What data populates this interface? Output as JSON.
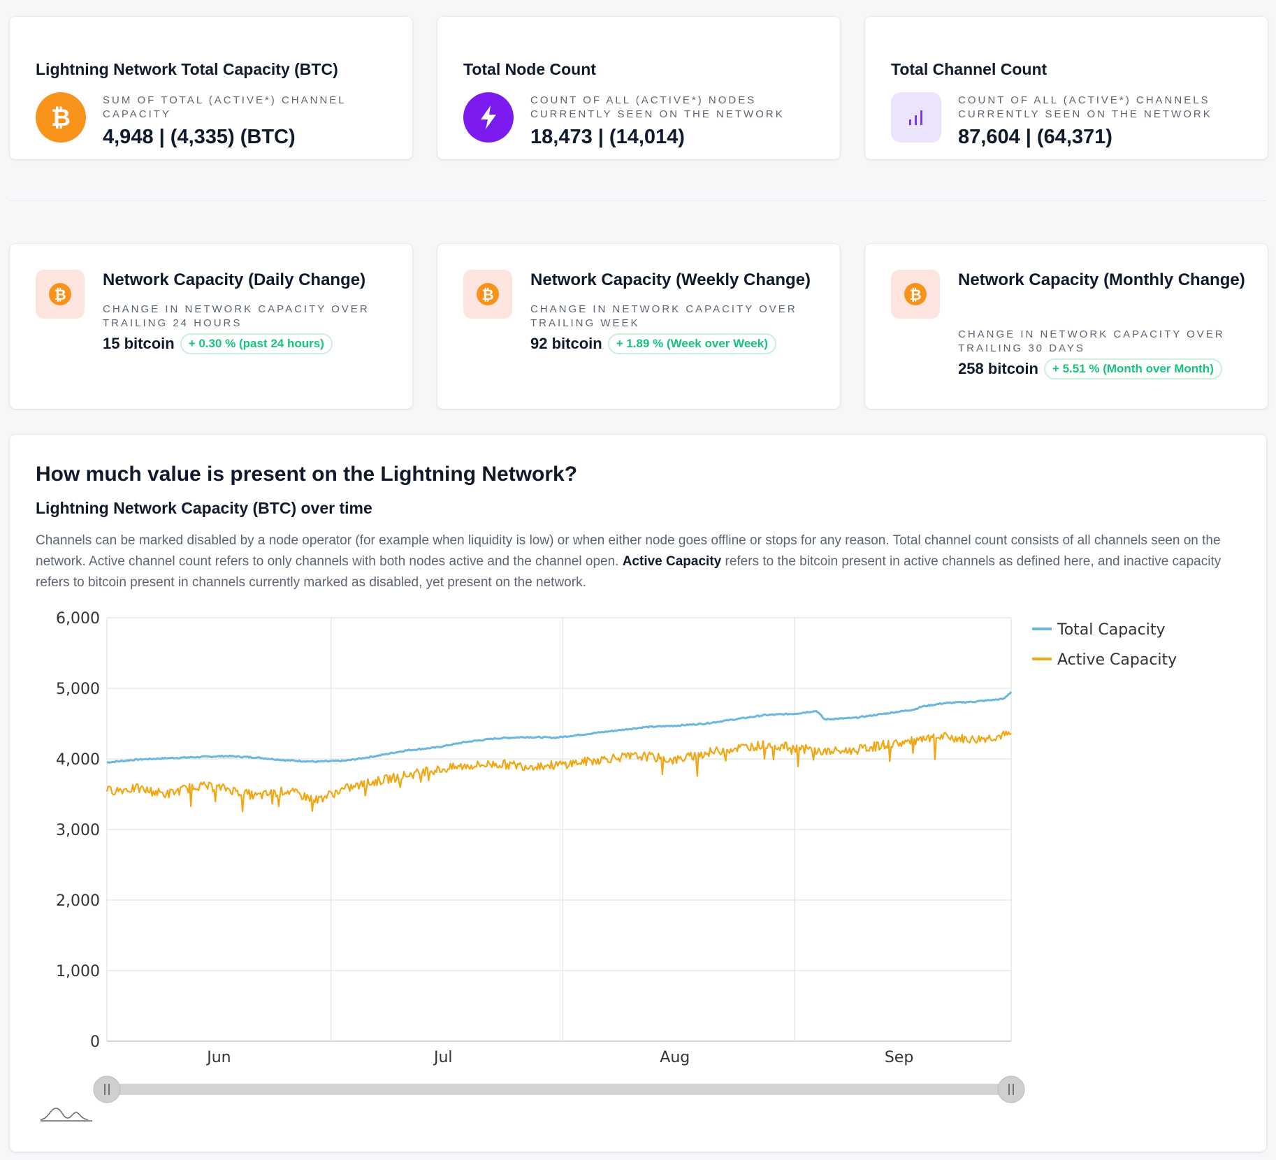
{
  "stats": [
    {
      "title": "Lightning Network Total Capacity (BTC)",
      "desc": "SUM OF TOTAL (ACTIVE*) CHANNEL CAPACITY",
      "value": "4,948 | (4,335) (BTC)",
      "icon": "bitcoin-icon",
      "icon_bg": "#f7931a"
    },
    {
      "title": "Total Node Count",
      "desc": "COUNT OF ALL (ACTIVE*) NODES CURRENTLY SEEN ON THE NETWORK",
      "value": "18,473 | (14,014)",
      "icon": "lightning-icon",
      "icon_bg": "#7c1bf0"
    },
    {
      "title": "Total Channel Count",
      "desc": "COUNT OF ALL (ACTIVE*) CHANNELS CURRENTLY SEEN ON THE NETWORK",
      "value": "87,604 | (64,371)",
      "icon": "bar-chart-icon",
      "icon_bg": "#ece3fd"
    }
  ],
  "changes": [
    {
      "title": "Network Capacity (Daily Change)",
      "desc": "CHANGE IN NETWORK CAPACITY OVER TRAILING 24 HOURS",
      "amount": "15 bitcoin",
      "badge": "+ 0.30 % (past 24 hours)"
    },
    {
      "title": "Network Capacity (Weekly Change)",
      "desc": "CHANGE IN NETWORK CAPACITY OVER TRAILING WEEK",
      "amount": "92 bitcoin",
      "badge": "+ 1.89 % (Week over Week)"
    },
    {
      "title": "Network Capacity (Monthly Change)",
      "desc": "CHANGE IN NETWORK CAPACITY OVER TRAILING 30 DAYS",
      "amount": "258 bitcoin",
      "badge": "+ 5.51 % (Month over Month)"
    }
  ],
  "section": {
    "heading": "How much value is present on the Lightning Network?",
    "subheading": "Lightning Network Capacity (BTC) over time",
    "para_part1": "Channels can be marked disabled by a node operator (for example when liquidity is low) or when either node goes offline or stops for any reason. Total channel count consists of all channels seen on the network. Active channel count refers to only channels with both nodes active and the channel open. ",
    "para_bold": "Active Capacity",
    "para_part2": " refers to the bitcoin present in active channels as defined here, and inactive capacity refers to bitcoin present in channels currently marked as disabled, yet present on the network."
  },
  "colors": {
    "total": "#6cb7dd",
    "active": "#f0a713",
    "orange": "#f7931a",
    "badge_green": "#16c47f"
  },
  "chart_data": {
    "type": "line",
    "title": "Lightning Network Capacity (BTC) over time",
    "xlabel": "",
    "ylabel": "",
    "ylim": [
      0,
      6000
    ],
    "yticks": [
      "0",
      "1,000",
      "2,000",
      "3,000",
      "4,000",
      "5,000",
      "6,000"
    ],
    "yticks_values": [
      0,
      1000,
      2000,
      3000,
      4000,
      5000,
      6000
    ],
    "xticks": [
      "Jun",
      "Jul",
      "Aug",
      "Sep"
    ],
    "xticks_day": [
      15,
      45,
      76,
      106
    ],
    "day_range": [
      0,
      121
    ],
    "legend": [
      "Total Capacity",
      "Active Capacity"
    ],
    "legend_position": "right",
    "grid": true,
    "series": [
      {
        "name": "Total Capacity",
        "day": [
          0,
          4,
          8,
          12,
          16,
          20,
          24,
          28,
          32,
          36,
          40,
          44,
          48,
          52,
          56,
          60,
          64,
          68,
          72,
          76,
          80,
          84,
          88,
          92,
          95,
          96,
          100,
          104,
          108,
          109,
          112,
          116,
          120,
          121
        ],
        "values": [
          3950,
          3990,
          4010,
          4025,
          4040,
          4020,
          3980,
          3960,
          3975,
          4040,
          4120,
          4160,
          4240,
          4290,
          4310,
          4300,
          4350,
          4400,
          4450,
          4470,
          4500,
          4560,
          4620,
          4640,
          4680,
          4560,
          4580,
          4640,
          4700,
          4740,
          4790,
          4810,
          4850,
          4950
        ]
      },
      {
        "name": "Active Capacity",
        "day": [
          0,
          4,
          8,
          12,
          16,
          20,
          24,
          28,
          32,
          36,
          40,
          44,
          48,
          52,
          56,
          60,
          64,
          68,
          72,
          76,
          80,
          84,
          88,
          92,
          96,
          100,
          104,
          108,
          112,
          116,
          120,
          121
        ],
        "values": [
          3550,
          3580,
          3500,
          3620,
          3580,
          3470,
          3550,
          3420,
          3580,
          3680,
          3770,
          3840,
          3900,
          3930,
          3900,
          3910,
          3960,
          4020,
          4040,
          3980,
          4080,
          4150,
          4200,
          4160,
          4100,
          4120,
          4200,
          4250,
          4310,
          4270,
          4330,
          4335
        ]
      }
    ]
  }
}
